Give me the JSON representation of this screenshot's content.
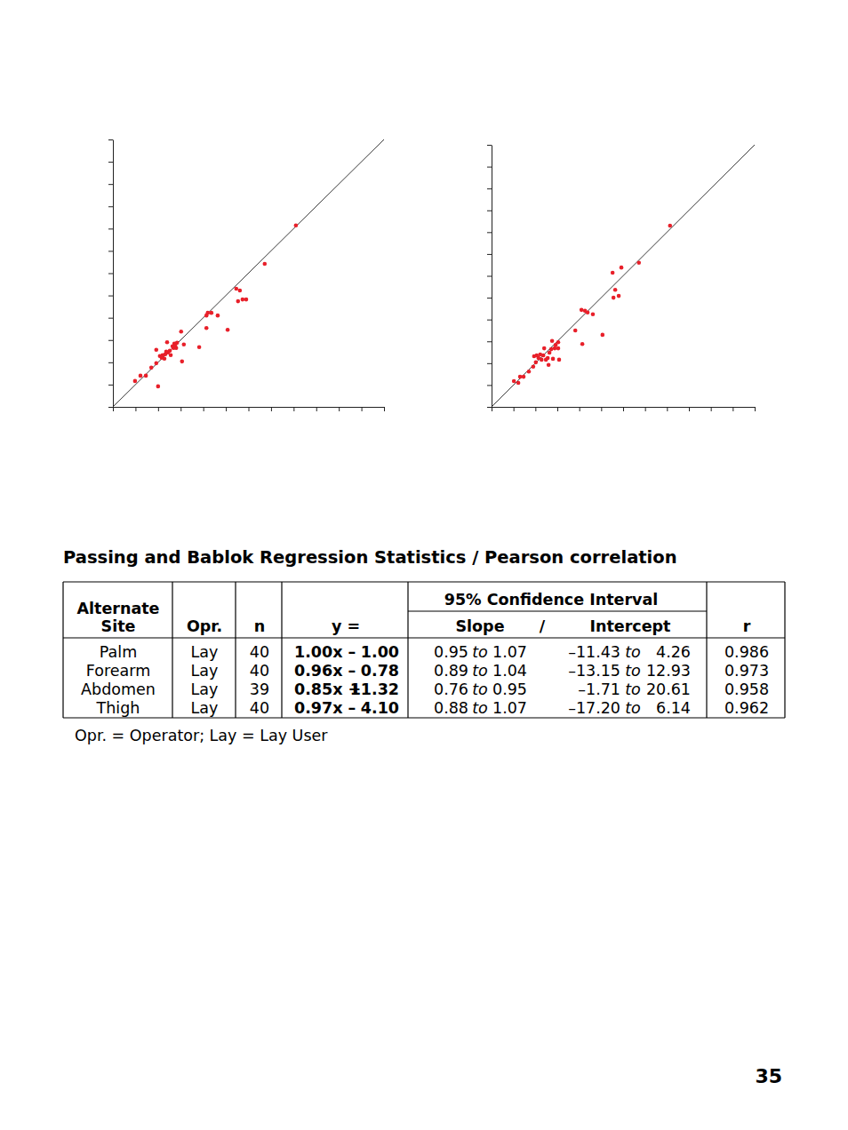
{
  "chart_data": [
    {
      "type": "scatter",
      "tick_labels": false,
      "marker": "circle",
      "color": "#e8202a",
      "xlim": [
        0,
        600
      ],
      "ylim": [
        0,
        600
      ],
      "xticks": [
        0,
        50,
        100,
        150,
        200,
        250,
        300,
        350,
        400,
        450,
        500,
        550,
        600
      ],
      "yticks": [
        0,
        50,
        100,
        150,
        200,
        250,
        300,
        350,
        400,
        450,
        500,
        550,
        600
      ],
      "x": [
        49,
        61,
        73,
        85,
        96,
        100,
        96,
        108,
        110,
        114,
        116,
        120,
        122,
        126,
        128,
        132,
        134,
        136,
        140,
        142,
        151,
        153,
        157,
        191,
        207,
        207,
        210,
        218,
        232,
        254,
        273,
        277,
        281,
        287,
        295,
        336,
        405,
        104,
        118,
        138
      ],
      "y": [
        58,
        70,
        70,
        88,
        98,
        46,
        128,
        110,
        116,
        108,
        118,
        145,
        122,
        126,
        116,
        136,
        132,
        142,
        132,
        144,
        169,
        102,
        140,
        134,
        205,
        177,
        211,
        211,
        205,
        173,
        265,
        237,
        261,
        241,
        241,
        321,
        407,
        114,
        124,
        138
      ]
    },
    {
      "type": "scatter",
      "tick_labels": false,
      "marker": "circle",
      "color": "#e8202a",
      "xlim": [
        0,
        600
      ],
      "ylim": [
        0,
        600
      ],
      "xticks": [
        0,
        50,
        100,
        150,
        200,
        250,
        300,
        350,
        400,
        450,
        500,
        550,
        600
      ],
      "yticks": [
        0,
        50,
        100,
        150,
        200,
        250,
        300,
        350,
        400,
        450,
        500,
        550,
        600
      ],
      "x": [
        51,
        61,
        65,
        73,
        85,
        95,
        97,
        101,
        107,
        111,
        114,
        118,
        120,
        124,
        128,
        130,
        132,
        136,
        138,
        140,
        144,
        146,
        152,
        152,
        154,
        191,
        205,
        207,
        213,
        219,
        231,
        253,
        276,
        278,
        282,
        290,
        296,
        336,
        407,
        103
      ],
      "y": [
        59,
        55,
        69,
        69,
        81,
        92,
        116,
        102,
        112,
        120,
        108,
        118,
        134,
        108,
        112,
        96,
        124,
        132,
        151,
        110,
        134,
        142,
        134,
        148,
        108,
        175,
        222,
        144,
        220,
        216,
        212,
        165,
        307,
        250,
        268,
        254,
        319,
        330,
        415,
        118
      ]
    }
  ],
  "heading": "Passing and Bablok Regression Statistics / Pearson correlation",
  "table": {
    "header": {
      "site": [
        "Alternate",
        "Site"
      ],
      "opr": "Opr.",
      "n": "n",
      "equation": "y =",
      "ci": "95% Confidence Interval",
      "slope": "Slope",
      "separator": "/",
      "intercept": "Intercept",
      "r": "r"
    },
    "range_word": "to",
    "rows": [
      {
        "site": "Palm",
        "opr": "Lay",
        "n": "40",
        "equation": {
          "term": "1.00x –",
          "constant": "1.00"
        },
        "slope": {
          "low": "0.95",
          "high": "1.07"
        },
        "intercept": {
          "low": "–11.43",
          "high": "4.26"
        },
        "r": "0.986"
      },
      {
        "site": "Forearm",
        "opr": "Lay",
        "n": "40",
        "equation": {
          "term": "0.96x –",
          "constant": "0.78"
        },
        "slope": {
          "low": "0.89",
          "high": "1.04"
        },
        "intercept": {
          "low": "–13.15",
          "high": "12.93"
        },
        "r": "0.973"
      },
      {
        "site": "Abdomen",
        "opr": "Lay",
        "n": "39",
        "equation": {
          "term": "0.85x +",
          "constant": "11.32"
        },
        "slope": {
          "low": "0.76",
          "high": "0.95"
        },
        "intercept": {
          "low": "–1.71",
          "high": "20.61"
        },
        "r": "0.958"
      },
      {
        "site": "Thigh",
        "opr": "Lay",
        "n": "40",
        "equation": {
          "term": "0.97x –",
          "constant": "4.10"
        },
        "slope": {
          "low": "0.88",
          "high": "1.07"
        },
        "intercept": {
          "low": "–17.20",
          "high": "6.14"
        },
        "r": "0.962"
      }
    ]
  },
  "footnote": "Opr. = Operator; Lay = Lay User",
  "page_number": "35"
}
